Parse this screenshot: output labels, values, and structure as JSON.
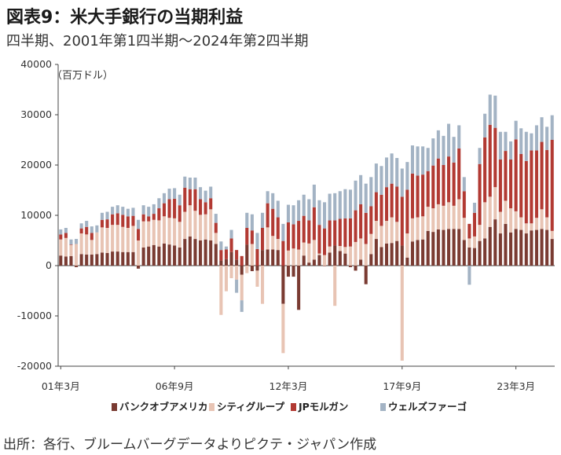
{
  "chart_data": {
    "type": "bar",
    "stacked": true,
    "title": "図表9：米大手銀行の当期利益",
    "subtitle": "四半期、2001年第1四半期～2024年第2四半期",
    "unit_label": "（百万ドル）",
    "source": "出所：各行、ブルームバーグデータよりピクテ・ジャパン作成",
    "ylim": [
      -20000,
      40000
    ],
    "y_ticks": [
      40000,
      30000,
      20000,
      10000,
      0,
      -10000,
      -20000
    ],
    "y_tick_labels": [
      "40000",
      "30000",
      "20000",
      "10000",
      "0",
      "-10000",
      "-20000"
    ],
    "x_tick_labels": [
      {
        "label": "01年3月",
        "index": 0
      },
      {
        "label": "06年9月",
        "index": 22
      },
      {
        "label": "12年3月",
        "index": 44
      },
      {
        "label": "17年9月",
        "index": 66
      },
      {
        "label": "23年3月",
        "index": 88
      }
    ],
    "legend_position": "bottom",
    "grid": false,
    "series": [
      {
        "name": "バンクオブアメリカ",
        "color": "#7a3b32",
        "values": [
          2000,
          1800,
          1900,
          -300,
          2300,
          2200,
          2200,
          2300,
          2600,
          2500,
          2800,
          2800,
          2700,
          2700,
          2700,
          -600,
          3600,
          3800,
          4100,
          3800,
          4400,
          4200,
          4000,
          3600,
          5300,
          5800,
          5300,
          5000,
          5200,
          5000,
          4300,
          1000,
          1300,
          2700,
          1200,
          -1800,
          4200,
          -1100,
          -1000,
          3100,
          3200,
          3200,
          3100,
          -7600,
          -2200,
          -2200,
          -8800,
          2000,
          600,
          1200,
          2100,
          -100,
          2600,
          4000,
          2900,
          2400,
          -300,
          -1000,
          1200,
          -3700,
          2300,
          5300,
          3700,
          4400,
          4500,
          4900,
          4000,
          1600,
          4800,
          5100,
          5200,
          6900,
          6700,
          7200,
          7100,
          7300,
          7300,
          7300,
          5100,
          3600,
          3500,
          4900,
          5400,
          7700,
          9200,
          6400,
          8300,
          6600,
          7300,
          7100,
          6400,
          7000,
          7100,
          7300,
          7100,
          5300
        ],
        "neg_color": "#7a3b32"
      },
      {
        "name": "シティグループ",
        "color": "#e8c4b4",
        "values": [
          3200,
          3700,
          2200,
          4300,
          4100,
          4000,
          2900,
          4300,
          5000,
          5000,
          5300,
          5300,
          5000,
          4800,
          5200,
          5000,
          5200,
          5000,
          5000,
          5200,
          5400,
          5300,
          5400,
          5100,
          5400,
          6200,
          5600,
          5100,
          5000,
          6200,
          2200,
          -9800,
          -5100,
          -2500,
          -2800,
          -5100,
          -1500,
          4300,
          -3200,
          -7600,
          4400,
          2700,
          2200,
          -9800,
          3000,
          3400,
          3200,
          2600,
          3800,
          3900,
          300,
          2100,
          1200,
          -8000,
          1000,
          1300,
          3800,
          4700,
          4200,
          4300,
          4000,
          3600,
          4200,
          4500,
          5100,
          3800,
          -18900,
          4800,
          4600,
          4500,
          4600,
          4800,
          4700,
          5000,
          4800,
          5300,
          4600,
          5900,
          4400,
          1800,
          2300,
          3200,
          7200,
          6000,
          6400,
          4300,
          4600,
          4800,
          3500,
          2500,
          2000,
          1400,
          2400,
          3900,
          2500,
          1600,
          2400
        ],
        "neg_color": "#e8c4b4"
      },
      {
        "name": "JPモルガン",
        "color": "#b23a33",
        "values": [
          1000,
          1000,
          100,
          0,
          1000,
          1500,
          1400,
          0,
          1500,
          1700,
          2100,
          2300,
          2400,
          2300,
          2000,
          2300,
          1400,
          1000,
          1200,
          2400,
          2600,
          3700,
          3900,
          3300,
          4800,
          3200,
          4300,
          3100,
          2400,
          2200,
          2000,
          2100,
          1900,
          2700,
          1900,
          1900,
          3300,
          2700,
          3300,
          4400,
          4800,
          5400,
          4300,
          4900,
          5600,
          4800,
          5700,
          5300,
          4600,
          6500,
          5700,
          5300,
          5200,
          5000,
          5400,
          5700,
          5600,
          6300,
          6800,
          6200,
          5500,
          5700,
          6200,
          6700,
          6700,
          7000,
          9700,
          8700,
          8900,
          8300,
          8300,
          7100,
          8500,
          9100,
          8100,
          9100,
          8600,
          10100,
          5300,
          2900,
          4700,
          12100,
          12900,
          14300,
          11800,
          10400,
          9900,
          9700,
          14300,
          12600,
          12400,
          14500,
          13400,
          13400,
          13400,
          18100
        ],
        "neg_color": "#b23a33"
      },
      {
        "name": "ウェルズファーゴ",
        "color": "#a3b3c4",
        "values": [
          1000,
          1000,
          1000,
          1000,
          1000,
          1200,
          1300,
          1400,
          1400,
          1500,
          1500,
          1600,
          1600,
          1500,
          1600,
          1800,
          1800,
          1900,
          1900,
          2000,
          2000,
          2100,
          2100,
          2100,
          2200,
          2300,
          2300,
          2400,
          2300,
          2300,
          1800,
          1700,
          600,
          1700,
          -2600,
          -2300,
          3000,
          3200,
          3200,
          3000,
          2400,
          3100,
          3300,
          3400,
          3500,
          3800,
          4100,
          4200,
          4200,
          4500,
          4900,
          5200,
          5300,
          5400,
          5500,
          5800,
          5700,
          5900,
          5800,
          5800,
          5800,
          5700,
          5700,
          5900,
          6000,
          5700,
          5600,
          5500,
          5600,
          5800,
          5600,
          4600,
          5400,
          5600,
          5800,
          6500,
          5100,
          4600,
          2800,
          -3800,
          2000,
          3200,
          4700,
          6000,
          6400,
          5500,
          3800,
          3600,
          3700,
          5100,
          5800,
          3400,
          5000,
          4900,
          4600,
          4900
        ],
        "neg_color": "#a3b3c4"
      }
    ]
  }
}
